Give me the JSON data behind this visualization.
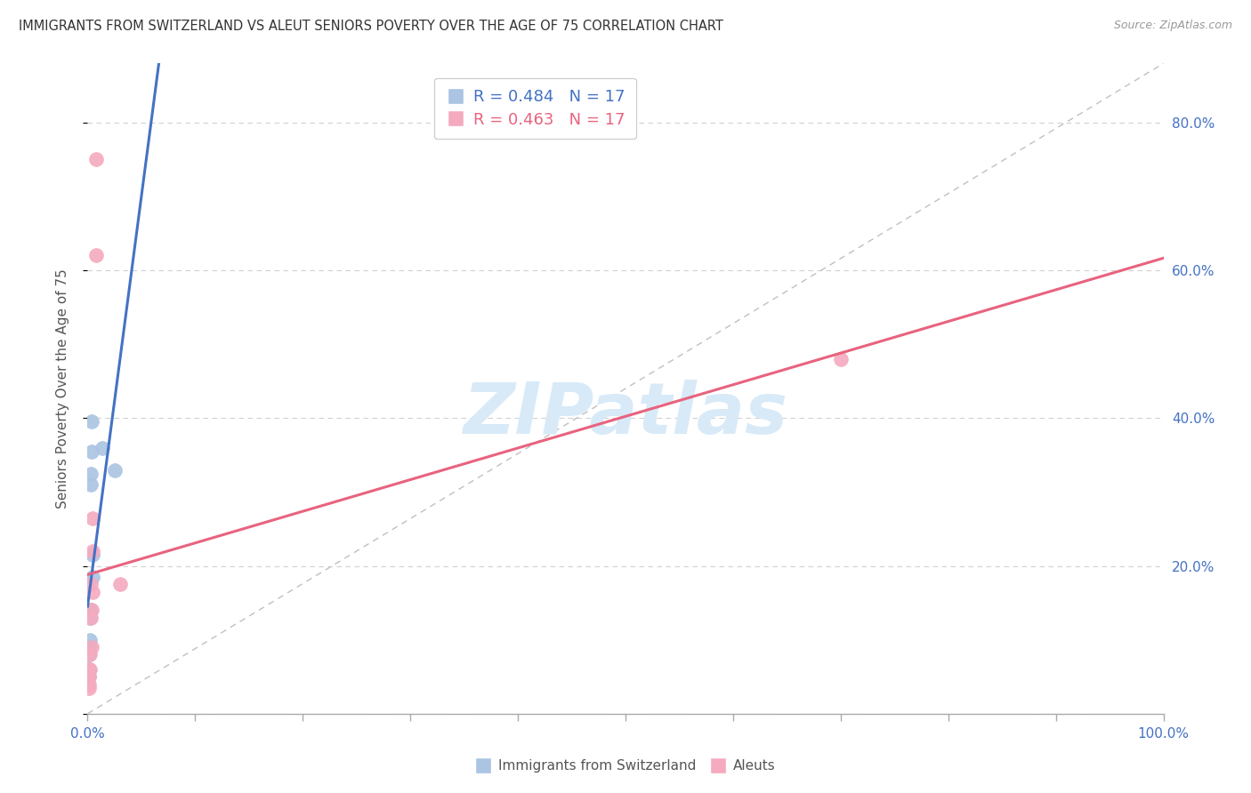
{
  "title": "IMMIGRANTS FROM SWITZERLAND VS ALEUT SENIORS POVERTY OVER THE AGE OF 75 CORRELATION CHART",
  "source": "Source: ZipAtlas.com",
  "ylabel": "Seniors Poverty Over the Age of 75",
  "legend_label1": "Immigrants from Switzerland",
  "legend_label2": "Aleuts",
  "r1": 0.484,
  "n1": 17,
  "r2": 0.463,
  "n2": 17,
  "color1": "#aac4e2",
  "color2": "#f5aabf",
  "line_color1": "#4472c4",
  "line_color2": "#e8637e",
  "watermark": "ZIPatlas",
  "xlim": [
    0,
    1.0
  ],
  "ylim": [
    0,
    0.88
  ],
  "blue_x": [
    0.005,
    0.005,
    0.004,
    0.004,
    0.003,
    0.003,
    0.003,
    0.002,
    0.002,
    0.002,
    0.001,
    0.001,
    0.001,
    0.001,
    0.001,
    0.014,
    0.025
  ],
  "blue_y": [
    0.215,
    0.185,
    0.395,
    0.355,
    0.325,
    0.31,
    0.14,
    0.14,
    0.13,
    0.1,
    0.09,
    0.08,
    0.06,
    0.06,
    0.05,
    0.36,
    0.33
  ],
  "pink_x": [
    0.008,
    0.008,
    0.005,
    0.005,
    0.005,
    0.004,
    0.004,
    0.003,
    0.003,
    0.002,
    0.002,
    0.001,
    0.001,
    0.001,
    0.001,
    0.7,
    0.03
  ],
  "pink_y": [
    0.75,
    0.62,
    0.265,
    0.22,
    0.165,
    0.14,
    0.09,
    0.175,
    0.13,
    0.08,
    0.06,
    0.06,
    0.05,
    0.04,
    0.035,
    0.48,
    0.175
  ],
  "xtick_positions": [
    0.0,
    0.1,
    0.2,
    0.3,
    0.4,
    0.5,
    0.6,
    0.7,
    0.8,
    0.9,
    1.0
  ],
  "ytick_positions": [
    0.0,
    0.2,
    0.4,
    0.6,
    0.8
  ],
  "right_yticklabels": [
    "",
    "20.0%",
    "40.0%",
    "60.0%",
    "80.0%"
  ]
}
